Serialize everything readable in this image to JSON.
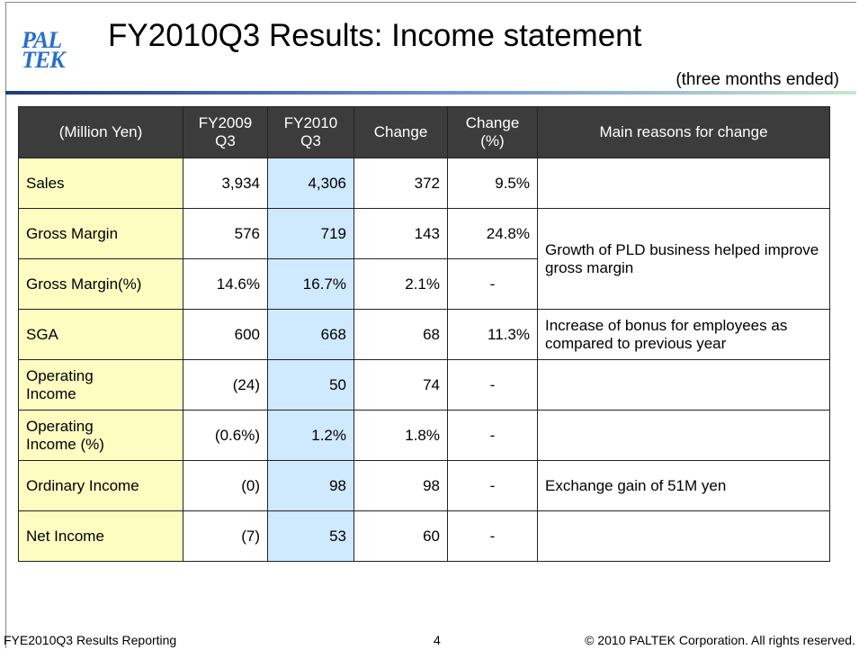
{
  "logo": "PAL TEK",
  "header": {
    "title": "FY2010Q3 Results: Income statement",
    "subtitle": "(three months ended)"
  },
  "table": {
    "columns": [
      "(Million Yen)",
      "FY2009\nQ3",
      "FY2010\nQ3",
      "Change",
      "Change\n(%)",
      "Main reasons for change"
    ],
    "rows": [
      {
        "label": "Sales",
        "values": [
          "3,934",
          "4,306",
          "372",
          "9.5%"
        ]
      },
      {
        "label": "Gross Margin",
        "values": [
          "576",
          "719",
          "143",
          "24.8%"
        ],
        "reason": "Growth of PLD business helped improve gross margin"
      },
      {
        "label": "Gross Margin(%)",
        "values": [
          "14.6%",
          "16.7%",
          "2.1%",
          "-"
        ]
      },
      {
        "label": "SGA",
        "values": [
          "600",
          "668",
          "68",
          "11.3%"
        ],
        "reason": "Increase of bonus for employees as compared to previous year"
      },
      {
        "label": "Operating\nIncome",
        "values": [
          "(24)",
          "50",
          "74",
          "-"
        ]
      },
      {
        "label": "Operating\nIncome (%)",
        "values": [
          "(0.6%)",
          "1.2%",
          "1.8%",
          "-"
        ]
      },
      {
        "label": "Ordinary Income",
        "values": [
          "(0)",
          "98",
          "98",
          "-"
        ],
        "reason": "Exchange gain of 51M yen"
      },
      {
        "label": "Net Income",
        "values": [
          "(7)",
          "53",
          "60",
          "-"
        ]
      }
    ]
  },
  "footer": {
    "left": "FYE2010Q3 Results Reporting",
    "page": "4",
    "right": "© 2010 PALTEK Corporation. All rights reserved."
  }
}
